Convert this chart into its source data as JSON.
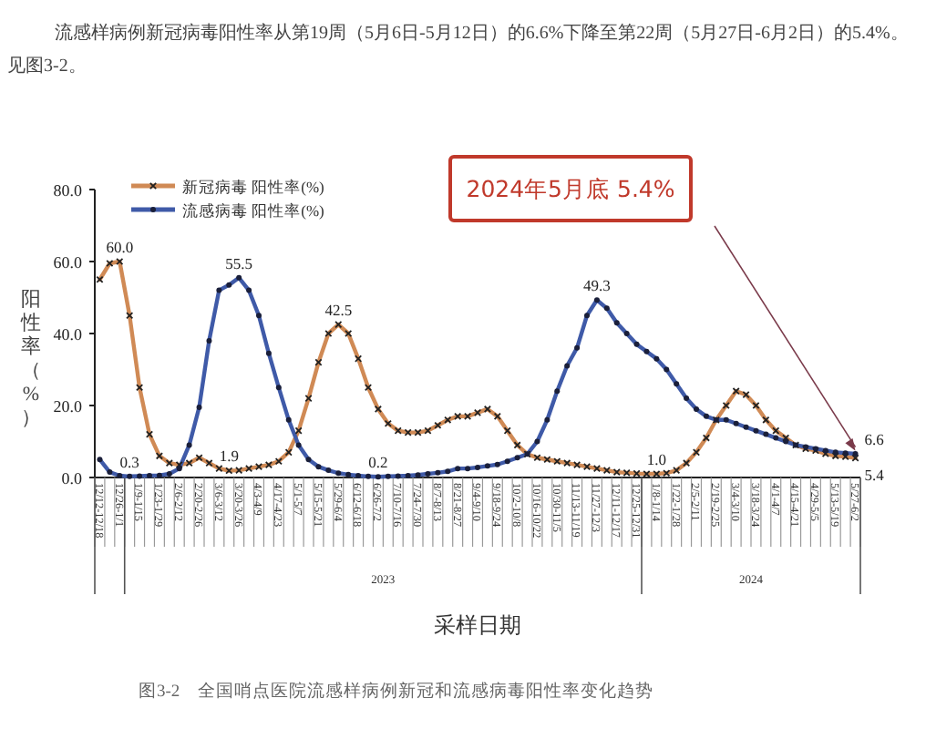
{
  "chart_data": {
    "type": "line",
    "subtitle": "流感样病例新冠病毒阳性率从第19周（5月6日-5月12日）的6.6%下降至第22周（5月27日-6月2日）的5.4%。见图3-2。",
    "xlabel": "采样日期",
    "ylabel": "阳性率（%）",
    "categories": [
      "12/12-12/18",
      null,
      "12/26-1/1",
      null,
      "1/9-1/15",
      null,
      "1/23-1/29",
      null,
      "2/6-2/12",
      null,
      "2/20-2/26",
      null,
      "3/6-3/12",
      null,
      "3/20-3/26",
      null,
      "4/3-4/9",
      null,
      "4/17-4/23",
      null,
      "5/1-5/7",
      null,
      "5/15-5/21",
      null,
      "5/29-6/4",
      null,
      "6/12-6/18",
      null,
      "6/26-7/2",
      null,
      "7/10-7/16",
      null,
      "7/24-7/30",
      null,
      "8/7-8/13",
      null,
      "8/21-8/27",
      null,
      "9/4-9/10",
      null,
      "9/18-9/24",
      null,
      "10/2-10/8",
      null,
      "10/16-10/22",
      null,
      "10/30-11/5",
      null,
      "11/13-11/19",
      null,
      "11/27-12/3",
      null,
      "12/11-12/17",
      null,
      "12/25-12/31",
      null,
      "1/8-1/14",
      null,
      "1/22-1/28",
      null,
      "2/5-2/11",
      null,
      "2/19-2/25",
      null,
      "3/4-3/10",
      null,
      "3/18-3/24",
      null,
      "4/1-4/7",
      null,
      "4/15-4/21",
      null,
      "4/29-5/5",
      null,
      "5/13-5/19",
      null,
      "5/27-6/2"
    ],
    "series": [
      {
        "name": "新冠病毒 阳性率(%)",
        "color": "#d08a55",
        "marker": "cross",
        "values": [
          55,
          59.5,
          60.0,
          45,
          25,
          12,
          6,
          4,
          3.5,
          4,
          5.5,
          4,
          2.5,
          1.9,
          2,
          2.5,
          3,
          3.5,
          4.5,
          7,
          13,
          22,
          32,
          40,
          42.5,
          40,
          33,
          25,
          19,
          15,
          13,
          12.5,
          12.5,
          13,
          14.5,
          16,
          17,
          17,
          18,
          19,
          17,
          13,
          9,
          6.5,
          5.5,
          5,
          4.5,
          4,
          3.5,
          3,
          2.5,
          2,
          1.5,
          1.3,
          1.1,
          1.0,
          1.0,
          1.2,
          2,
          4,
          7,
          11,
          16,
          20,
          24,
          23,
          20,
          16,
          13,
          11,
          9,
          8,
          7.5,
          6.6,
          6,
          5.8,
          5.4
        ],
        "value_labels": [
          null,
          null,
          "60.0",
          null,
          null,
          null,
          null,
          null,
          null,
          null,
          null,
          null,
          null,
          "1.9",
          null,
          null,
          null,
          null,
          null,
          null,
          null,
          null,
          null,
          null,
          "42.5",
          null,
          null,
          null,
          null,
          null,
          null,
          null,
          null,
          null,
          null,
          null,
          null,
          null,
          null,
          null,
          null,
          null,
          null,
          null,
          null,
          null,
          null,
          null,
          null,
          null,
          null,
          null,
          null,
          null,
          null,
          null,
          "1.0",
          null,
          null,
          null,
          null,
          null,
          null,
          null,
          null,
          null,
          null,
          null,
          null,
          null,
          null,
          null,
          null,
          null,
          null,
          null,
          "5.4"
        ]
      },
      {
        "name": "流感病毒 阳性率(%)",
        "color": "#3f5aa8",
        "marker": "circle",
        "values": [
          5,
          1.5,
          0.5,
          0.3,
          0.4,
          0.5,
          0.6,
          1,
          2.5,
          9,
          19.5,
          38,
          52,
          53.5,
          55.5,
          52,
          45,
          34.5,
          25,
          16,
          9,
          5,
          3,
          2,
          1.2,
          0.8,
          0.5,
          0.3,
          0.2,
          0.3,
          0.4,
          0.5,
          0.7,
          1,
          1.3,
          1.7,
          2.5,
          2.5,
          2.8,
          3.2,
          3.6,
          4.5,
          5.5,
          6.5,
          10,
          16,
          24,
          31,
          36,
          45,
          49.3,
          47,
          43,
          40,
          37,
          35,
          33,
          30,
          26,
          22,
          19,
          17,
          16,
          16,
          15,
          14,
          13,
          12,
          11,
          10,
          9,
          8.5,
          8,
          7.5,
          7,
          6.8,
          6.6
        ],
        "value_labels": [
          null,
          null,
          null,
          "0.3",
          null,
          null,
          null,
          null,
          null,
          null,
          null,
          null,
          null,
          null,
          "55.5",
          null,
          null,
          null,
          null,
          null,
          null,
          null,
          null,
          null,
          null,
          null,
          null,
          null,
          "0.2",
          null,
          null,
          null,
          null,
          null,
          null,
          null,
          null,
          null,
          null,
          null,
          null,
          null,
          null,
          null,
          null,
          null,
          null,
          null,
          null,
          null,
          "49.3",
          null,
          null,
          null,
          null,
          null,
          null,
          null,
          null,
          null,
          null,
          null,
          null,
          null,
          null,
          null,
          null,
          null,
          null,
          null,
          null,
          null,
          null,
          null,
          null,
          null,
          "6.6"
        ]
      }
    ],
    "ylim": [
      0,
      80
    ],
    "yticks": [
      {
        "value": 0,
        "label": "0.0"
      },
      {
        "value": 20,
        "label": "20.0"
      },
      {
        "value": 40,
        "label": "40.0"
      },
      {
        "value": 60,
        "label": "60.0"
      },
      {
        "value": 80,
        "label": "80.0"
      }
    ],
    "legend": "top left",
    "annotations": [
      "2023",
      "2024",
      "图3-2　全国哨点医院流感样病例新冠和流感病毒阳性率变化趋势",
      "2024年5月底 5.4%"
    ]
  }
}
